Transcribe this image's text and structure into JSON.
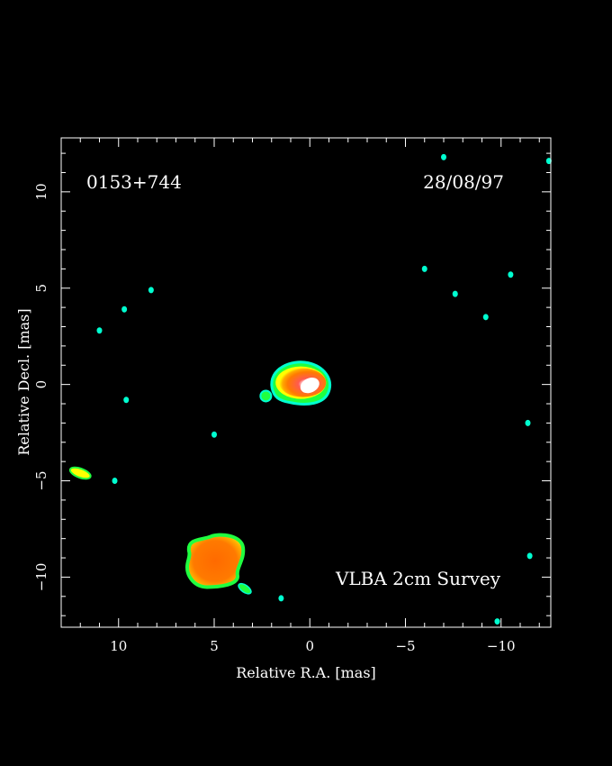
{
  "chart_data": {
    "type": "heatmap",
    "source_name": "0153+744",
    "date": "28/08/97",
    "survey": "VLBA 2cm Survey",
    "xlabel": "Relative R.A. [mas]",
    "ylabel": "Relative Decl. [mas]",
    "xlim": [
      13,
      -12.6
    ],
    "ylim": [
      -12.6,
      12.8
    ],
    "x_ticks": [
      10,
      5,
      0,
      -5,
      -10
    ],
    "x_tick_labels": [
      "10",
      "5",
      "0",
      "−5",
      "−10"
    ],
    "y_ticks": [
      10,
      5,
      0,
      -5,
      -10
    ],
    "y_tick_labels": [
      "10",
      "5",
      "0",
      "−5",
      "−10"
    ],
    "grid": false,
    "colors": {
      "background": "#000000",
      "faint": "#00ffd0",
      "low": "#20ff40",
      "mid": "#ffff00",
      "high": "#ff7000",
      "peak": "#ffffff",
      "frame": "#ffffff"
    },
    "components": [
      {
        "x": 0.0,
        "y": 0.0,
        "level": "peak"
      },
      {
        "x": 5.0,
        "y": -9.3,
        "level": "high"
      },
      {
        "x": 2.3,
        "y": -0.6,
        "level": "low"
      },
      {
        "x": 3.4,
        "y": -10.6,
        "level": "low"
      },
      {
        "x": 12.0,
        "y": -4.6,
        "level": "low"
      }
    ],
    "noise_patches": [
      {
        "x": 8.3,
        "y": 4.9
      },
      {
        "x": 9.7,
        "y": 3.9
      },
      {
        "x": 11.0,
        "y": 2.8
      },
      {
        "x": 9.6,
        "y": -0.8
      },
      {
        "x": 5.0,
        "y": -2.6
      },
      {
        "x": 10.2,
        "y": -5.0
      },
      {
        "x": 1.5,
        "y": -11.1
      },
      {
        "x": -6.0,
        "y": 6.0
      },
      {
        "x": -7.6,
        "y": 4.7
      },
      {
        "x": -9.2,
        "y": 3.5
      },
      {
        "x": -10.5,
        "y": 5.7
      },
      {
        "x": -11.4,
        "y": -2.0
      },
      {
        "x": -11.5,
        "y": -8.9
      },
      {
        "x": -9.8,
        "y": -12.3
      },
      {
        "x": -12.5,
        "y": 11.6
      },
      {
        "x": -7.0,
        "y": 11.8
      }
    ]
  }
}
